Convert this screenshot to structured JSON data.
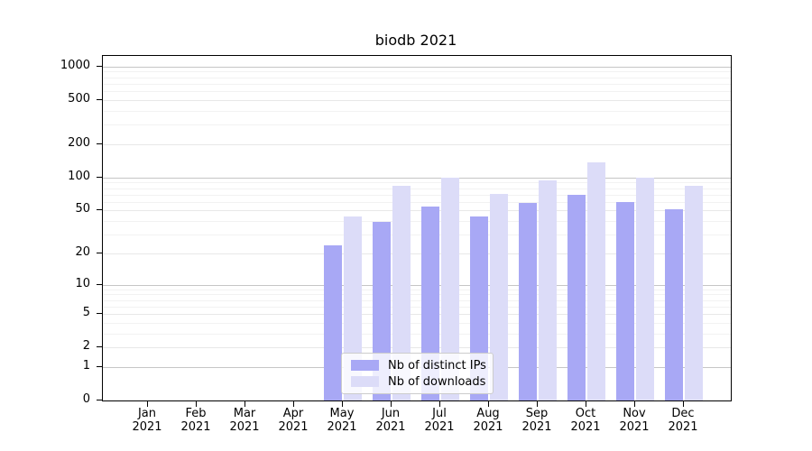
{
  "chart_data": {
    "type": "bar",
    "title": "biodb 2021",
    "categories": [
      "Jan",
      "Feb",
      "Mar",
      "Apr",
      "May",
      "Jun",
      "Jul",
      "Aug",
      "Sep",
      "Oct",
      "Nov",
      "Dec"
    ],
    "year": "2021",
    "series": [
      {
        "name": "Nb of distinct IPs",
        "color": "#a8a8f5",
        "values": [
          0,
          0,
          0,
          0,
          24,
          39,
          54,
          44,
          59,
          69,
          60,
          51
        ]
      },
      {
        "name": "Nb of downloads",
        "color": "#dcdcf8",
        "values": [
          0,
          0,
          0,
          0,
          44,
          84,
          100,
          71,
          94,
          136,
          100,
          84
        ]
      }
    ],
    "y_axis": {
      "scale": "log10(value+1)",
      "ticks": [
        0,
        1,
        2,
        5,
        10,
        20,
        50,
        100,
        200,
        500,
        1000
      ],
      "decade_ticks": [
        1,
        10,
        100,
        1000
      ],
      "range": [
        0,
        1000
      ]
    },
    "x_axis": {
      "tick_label_format": "month newline year"
    },
    "grid": true,
    "legend": {
      "position": "bottom-center-inside"
    },
    "colors": {
      "bar_distinct_ips": "#a8a8f5",
      "bar_downloads": "#dcdcf8",
      "grid_major": "#c6c6c6",
      "grid_tick": "#e8e8e8",
      "grid_minor": "#f2f2f2",
      "axis": "#000000",
      "background": "#ffffff"
    }
  }
}
